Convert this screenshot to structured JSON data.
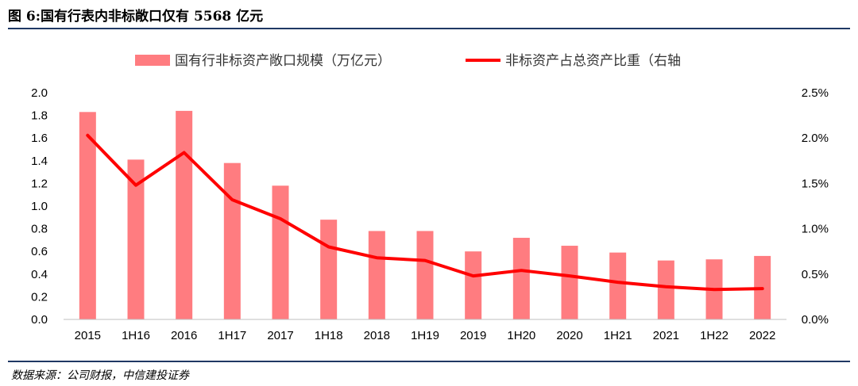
{
  "title": "图 6:国有行表内非标敞口仅有 5568 亿元",
  "source": "数据来源：公司财报，中信建投证券",
  "chart_data": {
    "type": "bar+line",
    "categories": [
      "2015",
      "1H16",
      "2016",
      "1H17",
      "2017",
      "1H18",
      "2018",
      "1H19",
      "2019",
      "1H20",
      "2020",
      "1H21",
      "2021",
      "1H22",
      "2022"
    ],
    "series": [
      {
        "name": "国有行非标资产敞口规模（万亿元）",
        "type": "bar",
        "axis": "left",
        "color": "#ff7c80",
        "values": [
          1.83,
          1.41,
          1.84,
          1.38,
          1.18,
          0.88,
          0.78,
          0.78,
          0.6,
          0.72,
          0.65,
          0.59,
          0.52,
          0.53,
          0.56
        ]
      },
      {
        "name": "非标资产占总资产比重（右轴",
        "type": "line",
        "axis": "right",
        "color": "#ff0000",
        "values": [
          2.03,
          1.48,
          1.84,
          1.32,
          1.11,
          0.8,
          0.68,
          0.65,
          0.48,
          0.54,
          0.48,
          0.41,
          0.36,
          0.33,
          0.34
        ]
      }
    ],
    "y_left": {
      "min": 0,
      "max": 2.0,
      "step": 0.2,
      "tick_labels": [
        "0.0",
        "0.2",
        "0.4",
        "0.6",
        "0.8",
        "1.0",
        "1.2",
        "1.4",
        "1.6",
        "1.8",
        "2.0"
      ]
    },
    "y_right": {
      "min": 0,
      "max": 2.5,
      "step": 0.5,
      "unit": "%",
      "tick_labels": [
        "0.0%",
        "0.5%",
        "1.0%",
        "1.5%",
        "2.0%",
        "2.5%"
      ]
    },
    "grid": false,
    "legend_position": "top"
  }
}
